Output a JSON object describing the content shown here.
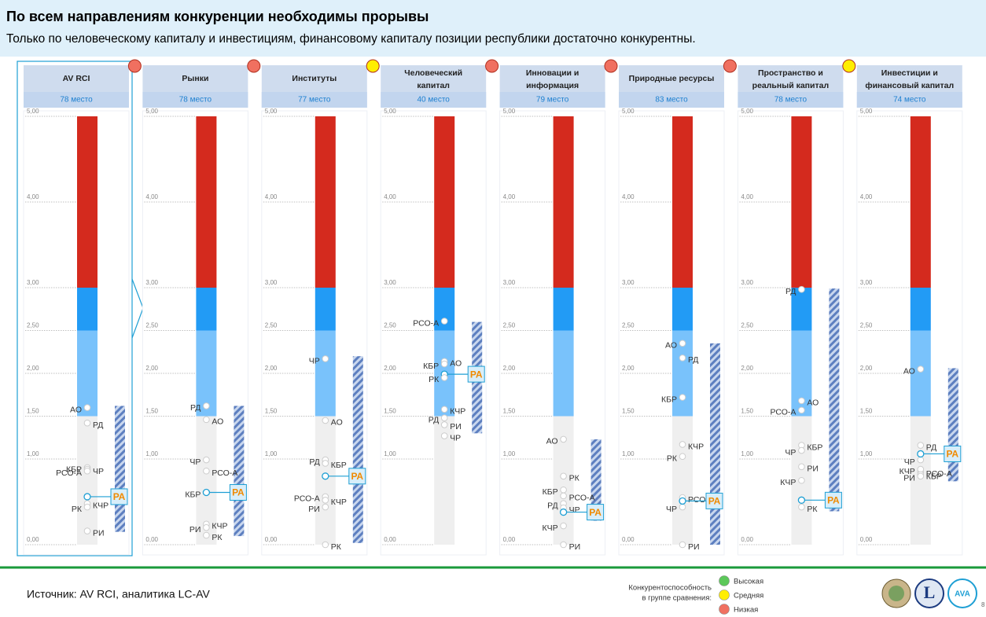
{
  "header": {
    "title": "По всем направлениям конкуренции необходимы прорывы",
    "subtitle": "Только по человеческому капиталу и инвестициям, финансовому капиталу позиции республики достаточно конкурентны."
  },
  "footer": {
    "source": "Источник: AV RCI, аналитика LC-AV",
    "page": "8"
  },
  "legend": {
    "title": [
      "Конкурентоспособность",
      "в группе сравнения:"
    ],
    "items": [
      {
        "label": "Высокая",
        "color": "#5cc85a"
      },
      {
        "label": "Средняя",
        "color": "#ffee00"
      },
      {
        "label": "Низкая",
        "color": "#f07060"
      }
    ]
  },
  "zones": [
    {
      "from": 0,
      "to": 1.5,
      "color": "#efefef"
    },
    {
      "from": 1.5,
      "to": 2.5,
      "color": "#79c2fb"
    },
    {
      "from": 2.5,
      "to": 3,
      "color": "#229bf5"
    },
    {
      "from": 3,
      "to": 5,
      "color": "#d42a1e"
    }
  ],
  "highlight": "РА",
  "chart_data": [
    {
      "type": "strip",
      "title": [
        "AV RCI"
      ],
      "subtitle": "78 место",
      "status": null,
      "ylim": [
        0,
        5
      ],
      "yticks": [
        {
          "value": 0,
          "label": "0,00"
        },
        {
          "value": 1,
          "label": "1,00"
        },
        {
          "value": 1.5,
          "label": "1,50"
        },
        {
          "value": 2,
          "label": "2,00"
        },
        {
          "value": 2.5,
          "label": "2,50"
        },
        {
          "value": 3,
          "label": "3,00"
        },
        {
          "value": 4,
          "label": "4,00"
        },
        {
          "value": 5,
          "label": "5,00"
        }
      ],
      "range": [
        0.15,
        1.62
      ],
      "points": [
        {
          "name": "АО",
          "value": 1.6
        },
        {
          "name": "РД",
          "value": 1.42
        },
        {
          "name": "КБР",
          "value": 0.9
        },
        {
          "name": "ЧР",
          "value": 0.88
        },
        {
          "name": "РСО-А",
          "value": 0.86
        },
        {
          "name": "РА",
          "value": 0.56
        },
        {
          "name": "КЧР",
          "value": 0.48
        },
        {
          "name": "РК",
          "value": 0.44
        },
        {
          "name": "РИ",
          "value": 0.16
        }
      ]
    },
    {
      "type": "strip",
      "title": [
        "Рынки"
      ],
      "subtitle": "78 место",
      "status": "#f07060",
      "ylim": [
        0,
        5
      ],
      "yticks": [
        {
          "value": 0,
          "label": "0,00"
        },
        {
          "value": 1,
          "label": "1,00"
        },
        {
          "value": 1.5,
          "label": "1,50"
        },
        {
          "value": 2,
          "label": "2,00"
        },
        {
          "value": 2.5,
          "label": "2,50"
        },
        {
          "value": 3,
          "label": "3,00"
        },
        {
          "value": 4,
          "label": "4,00"
        },
        {
          "value": 5,
          "label": "5,00"
        }
      ],
      "range": [
        0.1,
        1.62
      ],
      "points": [
        {
          "name": "РД",
          "value": 1.62
        },
        {
          "name": "АО",
          "value": 1.46
        },
        {
          "name": "ЧР",
          "value": 0.99
        },
        {
          "name": "РСО-А",
          "value": 0.86
        },
        {
          "name": "КБР",
          "value": 0.61
        },
        {
          "name": "РА",
          "value": 0.61
        },
        {
          "name": "КЧР",
          "value": 0.24
        },
        {
          "name": "РИ",
          "value": 0.2
        },
        {
          "name": "РК",
          "value": 0.11
        }
      ]
    },
    {
      "type": "strip",
      "title": [
        "Институты"
      ],
      "subtitle": "77 место",
      "status": "#f07060",
      "ylim": [
        0,
        5
      ],
      "yticks": [
        {
          "value": 0,
          "label": "0,00"
        },
        {
          "value": 1,
          "label": "1,00"
        },
        {
          "value": 1.5,
          "label": "1,50"
        },
        {
          "value": 2,
          "label": "2,00"
        },
        {
          "value": 2.5,
          "label": "2,50"
        },
        {
          "value": 3,
          "label": "3,00"
        },
        {
          "value": 4,
          "label": "4,00"
        },
        {
          "value": 5,
          "label": "5,00"
        }
      ],
      "range": [
        0.02,
        2.2
      ],
      "points": [
        {
          "name": "ЧР",
          "value": 2.17
        },
        {
          "name": "АО",
          "value": 1.45
        },
        {
          "name": "РД",
          "value": 0.99
        },
        {
          "name": "КБР",
          "value": 0.95
        },
        {
          "name": "РА",
          "value": 0.8
        },
        {
          "name": "РСО-А",
          "value": 0.56
        },
        {
          "name": "КЧР",
          "value": 0.52
        },
        {
          "name": "РИ",
          "value": 0.44
        },
        {
          "name": "РК",
          "value": 0
        }
      ]
    },
    {
      "type": "strip",
      "title": [
        "Человеческий",
        "капитал"
      ],
      "subtitle": "40 место",
      "status": "#ffee00",
      "ylim": [
        0,
        5
      ],
      "yticks": [
        {
          "value": 0,
          "label": "0,00"
        },
        {
          "value": 1,
          "label": "1,00"
        },
        {
          "value": 1.5,
          "label": "1,50"
        },
        {
          "value": 2,
          "label": "2,00"
        },
        {
          "value": 2.5,
          "label": "2,50"
        },
        {
          "value": 3,
          "label": "3,00"
        },
        {
          "value": 4,
          "label": "4,00"
        },
        {
          "value": 5,
          "label": "5,00"
        }
      ],
      "range": [
        1.3,
        2.6
      ],
      "points": [
        {
          "name": "РСО-А",
          "value": 2.61
        },
        {
          "name": "АО",
          "value": 2.14
        },
        {
          "name": "КБР",
          "value": 2.11
        },
        {
          "name": "РА",
          "value": 1.99
        },
        {
          "name": "КЧР",
          "value": 1.58
        },
        {
          "name": "РК",
          "value": 1.95
        },
        {
          "name": "РИ",
          "value": 1.4
        },
        {
          "name": "РД",
          "value": 1.48
        },
        {
          "name": "ЧР",
          "value": 1.27
        }
      ]
    },
    {
      "type": "strip",
      "title": [
        "Инновации и",
        "информация"
      ],
      "subtitle": "79 место",
      "status": "#f07060",
      "ylim": [
        0,
        5
      ],
      "yticks": [
        {
          "value": 0,
          "label": "0,00"
        },
        {
          "value": 1,
          "label": "1,00"
        },
        {
          "value": 1.5,
          "label": "1,50"
        },
        {
          "value": 2,
          "label": "2,00"
        },
        {
          "value": 2.5,
          "label": "2,50"
        },
        {
          "value": 3,
          "label": "3,00"
        },
        {
          "value": 4,
          "label": "4,00"
        },
        {
          "value": 5,
          "label": "5,00"
        }
      ],
      "range": [
        0.28,
        1.23
      ],
      "points": [
        {
          "name": "АО",
          "value": 1.23
        },
        {
          "name": "РК",
          "value": 0.8
        },
        {
          "name": "КБР",
          "value": 0.64
        },
        {
          "name": "РСО-А",
          "value": 0.57
        },
        {
          "name": "РД",
          "value": 0.48
        },
        {
          "name": "ЧР",
          "value": 0.43
        },
        {
          "name": "КЧР",
          "value": 0.22
        },
        {
          "name": "РА",
          "value": 0.38
        },
        {
          "name": "РИ",
          "value": 0
        }
      ]
    },
    {
      "type": "strip",
      "title": [
        "Природные ресурсы"
      ],
      "subtitle": "83 место",
      "status": "#f07060",
      "ylim": [
        0,
        5
      ],
      "yticks": [
        {
          "value": 0,
          "label": "0,00"
        },
        {
          "value": 1,
          "label": "1,00"
        },
        {
          "value": 1.5,
          "label": "1,50"
        },
        {
          "value": 2,
          "label": "2,00"
        },
        {
          "value": 2.5,
          "label": "2,50"
        },
        {
          "value": 3,
          "label": "3,00"
        },
        {
          "value": 4,
          "label": "4,00"
        },
        {
          "value": 5,
          "label": "5,00"
        }
      ],
      "range": [
        0,
        2.35
      ],
      "points": [
        {
          "name": "АО",
          "value": 2.35
        },
        {
          "name": "РД",
          "value": 2.18
        },
        {
          "name": "КБР",
          "value": 1.72
        },
        {
          "name": "КЧР",
          "value": 1.17
        },
        {
          "name": "РК",
          "value": 1.03
        },
        {
          "name": "РСО-А",
          "value": 0.55
        },
        {
          "name": "ЧР",
          "value": 0.44
        },
        {
          "name": "РА",
          "value": 0.51
        },
        {
          "name": "РИ",
          "value": 0
        }
      ]
    },
    {
      "type": "strip",
      "title": [
        "Пространство и",
        "реальный капитал"
      ],
      "subtitle": "78 место",
      "status": "#f07060",
      "ylim": [
        0,
        5
      ],
      "yticks": [
        {
          "value": 0,
          "label": "0,00"
        },
        {
          "value": 1,
          "label": "1,00"
        },
        {
          "value": 1.5,
          "label": "1,50"
        },
        {
          "value": 2,
          "label": "2,00"
        },
        {
          "value": 2.5,
          "label": "2,50"
        },
        {
          "value": 3,
          "label": "3,00"
        },
        {
          "value": 4,
          "label": "4,00"
        },
        {
          "value": 5,
          "label": "5,00"
        }
      ],
      "range": [
        0.39,
        2.99
      ],
      "points": [
        {
          "name": "РД",
          "value": 2.98
        },
        {
          "name": "АО",
          "value": 1.68
        },
        {
          "name": "РСО-А",
          "value": 1.57
        },
        {
          "name": "КБР",
          "value": 1.16
        },
        {
          "name": "ЧР",
          "value": 1.1
        },
        {
          "name": "РИ",
          "value": 0.91
        },
        {
          "name": "КЧР",
          "value": 0.75
        },
        {
          "name": "РК",
          "value": 0.44
        },
        {
          "name": "РА",
          "value": 0.52
        }
      ]
    },
    {
      "type": "strip",
      "title": [
        "Инвестиции и",
        "финансовый капитал"
      ],
      "subtitle": "74 место",
      "status": "#ffee00",
      "ylim": [
        0,
        5
      ],
      "yticks": [
        {
          "value": 0,
          "label": "0,00"
        },
        {
          "value": 1,
          "label": "1,00"
        },
        {
          "value": 1.5,
          "label": "1,50"
        },
        {
          "value": 2,
          "label": "2,00"
        },
        {
          "value": 2.5,
          "label": "2,50"
        },
        {
          "value": 3,
          "label": "3,00"
        },
        {
          "value": 4,
          "label": "4,00"
        },
        {
          "value": 5,
          "label": "5,00"
        }
      ],
      "range": [
        0.74,
        2.06
      ],
      "points": [
        {
          "name": "АО",
          "value": 2.05
        },
        {
          "name": "РД",
          "value": 1.16
        },
        {
          "name": "ЧР",
          "value": 0.99
        },
        {
          "name": "РА",
          "value": 1.06
        },
        {
          "name": "РСО-А",
          "value": 0.85
        },
        {
          "name": "КЧР",
          "value": 0.88
        },
        {
          "name": "КБР",
          "value": 0.82
        },
        {
          "name": "РИ",
          "value": 0.8
        }
      ]
    }
  ]
}
